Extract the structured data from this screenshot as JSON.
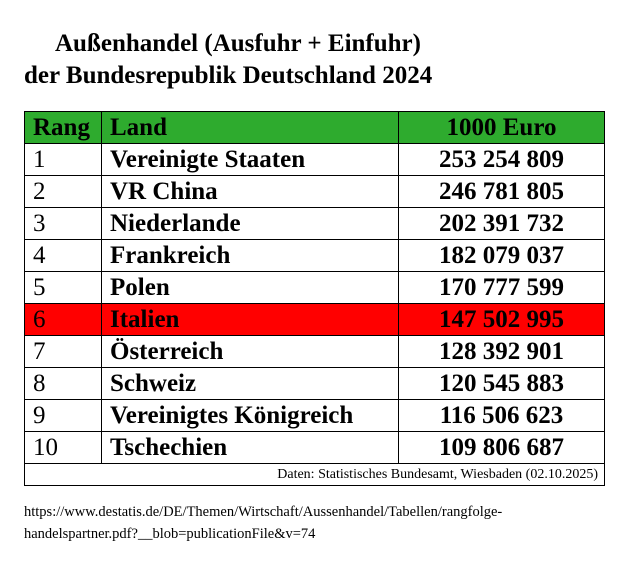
{
  "title": {
    "line1": "Außenhandel (Ausfuhr + Einfuhr)",
    "line2": "der Bundesrepublik Deutschland 2024"
  },
  "table": {
    "header": [
      "Rang",
      "Land",
      "1000 Euro"
    ],
    "rows": [
      [
        "1",
        "Vereinigte Staaten",
        "253 254 809"
      ],
      [
        "2",
        "VR China",
        "246 781 805"
      ],
      [
        "3",
        "Niederlande",
        "202 391 732"
      ],
      [
        "4",
        "Frankreich",
        "182 079 037"
      ],
      [
        "5",
        "Polen",
        "170 777 599"
      ],
      [
        "6",
        "Italien",
        "147 502 995"
      ],
      [
        "7",
        "Österreich",
        "128 392 901"
      ],
      [
        "8",
        "Schweiz",
        "120 545 883"
      ],
      [
        "9",
        "Vereinigtes Königreich",
        "116 506 623"
      ],
      [
        "10",
        "Tschechien",
        "109 806 687"
      ]
    ],
    "note": "Daten: Statistisches Bundesamt, Wiesbaden (02.10.2025)"
  },
  "source": {
    "line1": "https://www.destatis.de/DE/Themen/Wirtschaft/Aussenhandel/Tabellen/rangfolge-",
    "line2": "handelspartner.pdf?__blob=publicationFile&v=74"
  }
}
